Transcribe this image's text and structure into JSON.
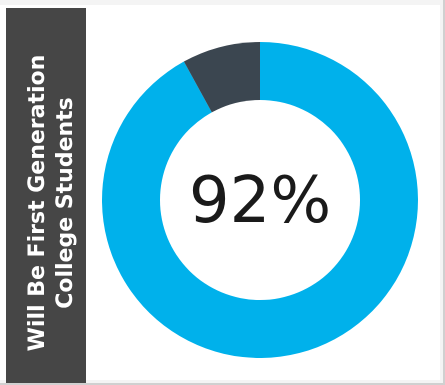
{
  "chart_data": {
    "type": "pie",
    "donut": true,
    "title_lines": [
      "Will Be First Generation",
      "College Students"
    ],
    "center_label": "92%",
    "slices": [
      {
        "value": 92,
        "color": "#00b1eb"
      },
      {
        "value": 8,
        "color": "#3b4650"
      }
    ]
  },
  "colors": {
    "accent": "#00b1eb",
    "remainder": "#3b4650",
    "sidebar": "#464646"
  }
}
